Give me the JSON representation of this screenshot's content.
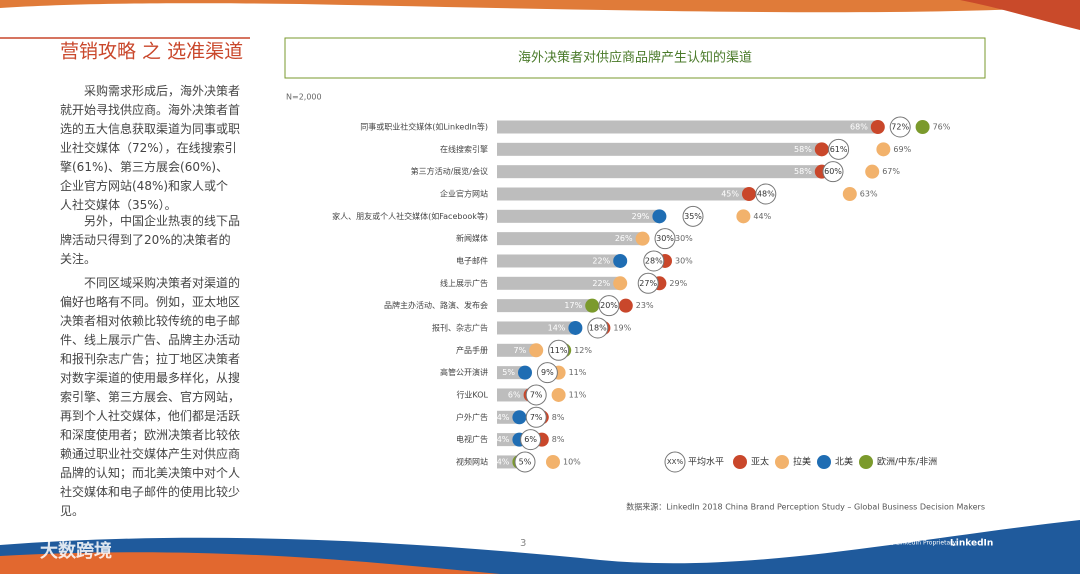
{
  "page": {
    "heading": "营销攻略 之 选准渠道",
    "paragraphs": [
      "采购需求形成后，海外决策者就开始寻找供应商。海外决策者首选的五大信息获取渠道为同事或职业社交媒体（72%），在线搜索引擎(61%)、第三方展会(60%)、企业官方网站(48%)和家人或个人社交媒体（35%）。",
      "另外，中国企业热衷的线下品牌活动只得到了20%的决策者的关注。",
      "不同区域采购决策者对渠道的偏好也略有不同。例如，亚太地区决策者相对依赖比较传统的电子邮件、线上展示广告、品牌主办活动和报刊杂志广告；拉丁地区决策者对数字渠道的使用最多样化，从搜索引擎、第三方展会、官方网站，再到个人社交媒体，他们都是活跃和深度使用者；欧洲决策者比较依赖通过职业社交媒体产生对供应商品牌的认知；而北美决策中对个人社交媒体和电子邮件的使用比较少见。"
    ],
    "page_number": "3",
    "footer_left": "领英专有 LinkedIn Proprietary",
    "footer_brand": "LinkedIn",
    "watermark": "大数跨境"
  },
  "chart_data": {
    "type": "dot",
    "title": "海外决策者对供应商品牌产生认知的渠道",
    "subtitle": "N=2,000",
    "source": "数据来源：LinkedIn 2018 China Brand Perception Study – Global Business Decision Makers",
    "legend_sample": "XX%",
    "xlim": [
      0,
      100
    ],
    "categories": [
      "同事或职业社交媒体(如LinkedIn等)",
      "在线搜索引擎",
      "第三方活动/展览/会议",
      "企业官方网站",
      "家人、朋友或个人社交媒体(如Facebook等)",
      "新闻媒体",
      "电子邮件",
      "线上展示广告",
      "品牌主办活动、路演、发布会",
      "报刊、杂志广告",
      "产品手册",
      "高管公开演讲",
      "行业KOL",
      "户外广告",
      "电视广告",
      "视频网站"
    ],
    "series": [
      {
        "name": "平均水平",
        "color": "#ffffff",
        "values": [
          72,
          61,
          60,
          48,
          35,
          30,
          28,
          27,
          20,
          18,
          11,
          9,
          7,
          7,
          6,
          5
        ],
        "value_labels": [
          "72%",
          "61%",
          "60%",
          "48%",
          "35%",
          "30%",
          "28%",
          "27%",
          "20%",
          "18%",
          "11%",
          "9%",
          "7%",
          "7%",
          "6%",
          "5%"
        ]
      },
      {
        "name": "亚太",
        "color": "#c9472b",
        "values": [
          68,
          58,
          58,
          45,
          null,
          30,
          30,
          29,
          23,
          19,
          null,
          null,
          6,
          8,
          8,
          null
        ],
        "value_labels": [
          "68%",
          "58%",
          "58%",
          "45%",
          null,
          "30%",
          "30%",
          "29%",
          "23%",
          "19%",
          null,
          null,
          "6%",
          "8%",
          "8%",
          null
        ]
      },
      {
        "name": "拉美",
        "color": "#f2b26c",
        "values": [
          null,
          69,
          67,
          63,
          44,
          26,
          null,
          22,
          null,
          null,
          7,
          11,
          11,
          null,
          null,
          10
        ],
        "value_labels": [
          null,
          "69%",
          "67%",
          "63%",
          "44%",
          "26%",
          null,
          "22%",
          null,
          null,
          "7%",
          "11%",
          "11%",
          null,
          null,
          "10%"
        ]
      },
      {
        "name": "北美",
        "color": "#1f6db3",
        "values": [
          null,
          null,
          null,
          null,
          29,
          null,
          22,
          null,
          null,
          14,
          null,
          5,
          null,
          4,
          4,
          null
        ],
        "value_labels": [
          null,
          null,
          null,
          null,
          "29%",
          null,
          "22%",
          null,
          null,
          "14%",
          null,
          "5%",
          null,
          "4%",
          "4%",
          null
        ]
      },
      {
        "name": "欧洲/中东/非洲",
        "color": "#7b9a2c",
        "values": [
          76,
          null,
          null,
          null,
          null,
          null,
          null,
          null,
          17,
          null,
          12,
          null,
          null,
          null,
          null,
          4
        ],
        "value_labels": [
          "76%",
          null,
          null,
          null,
          null,
          null,
          null,
          null,
          "17%",
          null,
          "12%",
          null,
          null,
          null,
          null,
          "4%"
        ]
      }
    ]
  }
}
